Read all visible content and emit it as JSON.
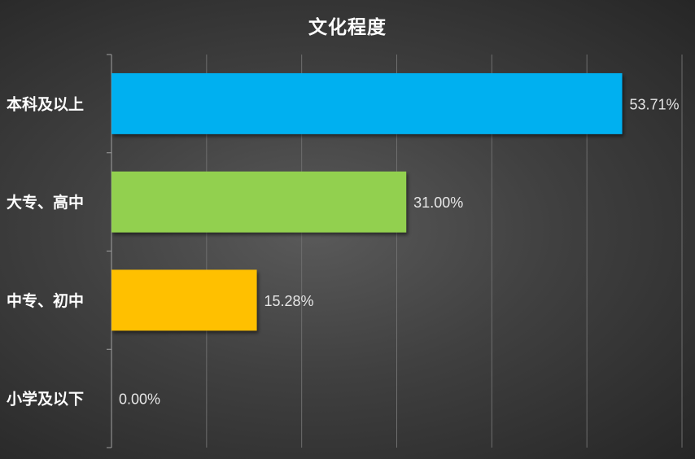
{
  "chart_data": {
    "type": "bar",
    "orientation": "horizontal",
    "title": "文化程度",
    "categories": [
      "本科及以上",
      "大专、高中",
      "中专、初中",
      "小学及以下"
    ],
    "values": [
      53.71,
      31.0,
      15.28,
      0.0
    ],
    "data_labels": [
      "53.71%",
      "31.00%",
      "15.28%",
      "0.00%"
    ],
    "colors": [
      "#00b0f0",
      "#92d050",
      "#ffc000",
      "#a5a5a5"
    ],
    "xlim": [
      0,
      60
    ],
    "grid": true,
    "legend": "none",
    "xlabel": "",
    "ylabel": ""
  }
}
